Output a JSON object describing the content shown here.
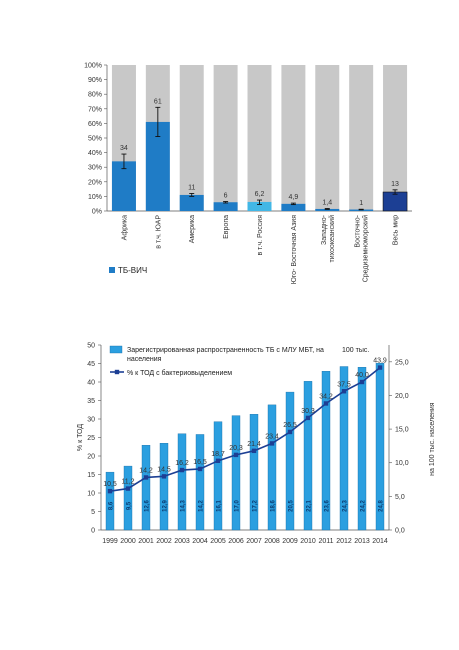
{
  "colors": {
    "bg_bar": "#c8c8c8",
    "blue": "#1f7cc6",
    "blue_light": "#42b7e6",
    "navy": "#1c3f94",
    "bar2": "#2b9fe0",
    "label_dark": "#0a3b70"
  },
  "chart_data": [
    {
      "type": "bar",
      "categories": [
        "Африка",
        "в т.ч. ЮАР",
        "Америка",
        "Европа",
        "в т.ч. Россия",
        "Юго- Восточная Азия",
        "Западно-тихоокеанский",
        "Восточно-Средиземноморский",
        "Весь мир"
      ],
      "category_lines": [
        [
          "Африка"
        ],
        [
          "в т.ч. ЮАР"
        ],
        [
          "Америка"
        ],
        [
          "Европа"
        ],
        [
          "в т.ч. Россия"
        ],
        [
          "Юго- Восточная Азия"
        ],
        [
          "Западно-",
          "тихоокеанский"
        ],
        [
          "Восточно-",
          "Средиземноморский"
        ],
        [
          "Весь мир"
        ]
      ],
      "values": [
        34,
        61,
        11,
        6,
        6.2,
        4.9,
        1.4,
        1,
        13
      ],
      "value_labels": [
        "34",
        "61",
        "11",
        "6",
        "6,2",
        "4,9",
        "1,4",
        "1",
        "13"
      ],
      "errors": [
        [
          29,
          39
        ],
        [
          51,
          71
        ],
        [
          10,
          12
        ],
        [
          5.5,
          6.5
        ],
        [
          4.5,
          7.5
        ],
        [
          4.4,
          5.4
        ],
        [
          1.1,
          1.7
        ],
        [
          0.8,
          1.2
        ],
        [
          11.5,
          14.5
        ]
      ],
      "bar_colors": [
        "blue",
        "blue",
        "blue",
        "blue",
        "blue_light",
        "blue",
        "blue",
        "blue",
        "navy"
      ],
      "ylim": [
        0,
        100
      ],
      "yticks": [
        "0%",
        "10%",
        "20%",
        "30%",
        "40%",
        "50%",
        "60%",
        "70%",
        "80%",
        "90%",
        "100%"
      ],
      "legend": "ТБ-ВИЧ",
      "legend_position": "bottom-left",
      "background_bars": true,
      "grid": false
    },
    {
      "type": "bar+line",
      "categories": [
        "1999",
        "2000",
        "2001",
        "2002",
        "2003",
        "2004",
        "2005",
        "2006",
        "2007",
        "2008",
        "2009",
        "2010",
        "2011",
        "2012",
        "2013",
        "2014"
      ],
      "bar_series": {
        "name": "Зарегистрированная распространенность ТБ с МЛУ МБТ, на 100 тыс. населения",
        "legend_lines": [
          "Зарегистрированная распространенность ТБ с МЛУ МБТ, на",
          "населения"
        ],
        "legend_suffix": "100  тыс.",
        "values": [
          8.6,
          9.5,
          12.6,
          12.9,
          14.3,
          14.2,
          16.1,
          17.0,
          17.2,
          18.6,
          20.5,
          22.1,
          23.6,
          24.3,
          24.2,
          24.8
        ],
        "value_labels": [
          "8,6",
          "9,5",
          "12,6",
          "12,9",
          "14,3",
          "14,2",
          "16,1",
          "17,0",
          "17,2",
          "18,6",
          "20,5",
          "22,1",
          "23,6",
          "24,3",
          "24,2",
          "24,8"
        ]
      },
      "line_series": {
        "name": "% к ТОД с бактериовыделением",
        "values": [
          10.5,
          11.2,
          14.2,
          14.5,
          16.2,
          16.5,
          18.7,
          20.3,
          21.4,
          23.4,
          26.5,
          30.3,
          34.2,
          37.5,
          40.0,
          43.9
        ],
        "value_labels": [
          "10,5",
          "11,2",
          "14,2",
          "14,5",
          "16,2",
          "16,5",
          "18,7",
          "20,3",
          "21,4",
          "23,4",
          "26,5",
          "30,3",
          "34,2",
          "37,5",
          "40,0",
          "43,9"
        ]
      },
      "ylabel_left": "% к ТОД",
      "ylabel_right": "на 100 тыс. населения",
      "ylim_left": [
        0,
        50
      ],
      "yticks_left": [
        "0",
        "5",
        "10",
        "15",
        "20",
        "25",
        "30",
        "35",
        "40",
        "45",
        "50"
      ],
      "ylim_right": [
        0,
        27.5
      ],
      "yticks_right": [
        "0,0",
        "5,0",
        "10,0",
        "15,0",
        "20,0",
        "25,0"
      ],
      "legend_position": "top-left",
      "grid": false
    }
  ]
}
